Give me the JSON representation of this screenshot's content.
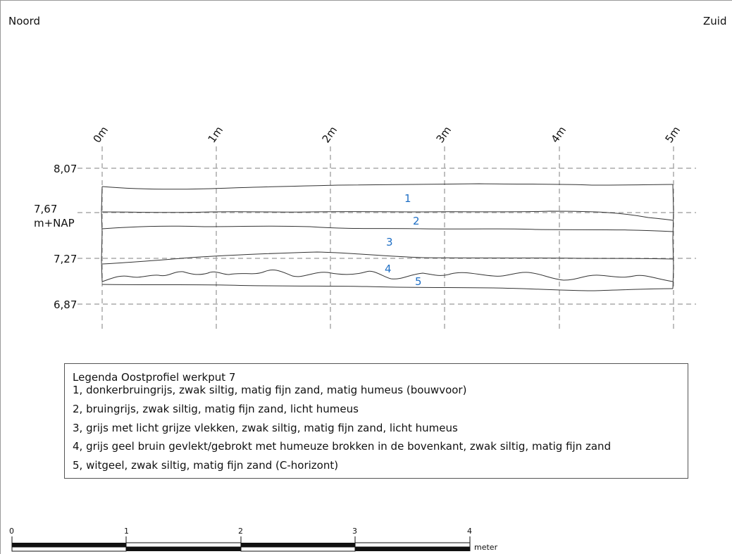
{
  "header": {
    "left": "Noord",
    "right": "Zuid"
  },
  "distance_ticks": [
    "0m",
    "1m",
    "2m",
    "3m",
    "4m",
    "5m"
  ],
  "elevation_ticks": [
    "8,07",
    "7,67",
    "7,27",
    "6,87"
  ],
  "elevation_unit": "m+NAP",
  "layers": [
    {
      "number": "1",
      "description": "1, donkerbruingrijs, zwak siltig, matig fijn zand, matig humeus (bouwvoor)"
    },
    {
      "number": "2",
      "description": "2, bruingrijs, zwak siltig, matig fijn zand, licht humeus"
    },
    {
      "number": "3",
      "description": "3, grijs met licht grijze vlekken,  zwak siltig, matig fijn zand, licht humeus"
    },
    {
      "number": "4",
      "description": "4, grijs geel bruin gevlekt/gebrokt met humeuze brokken in de bovenkant,  zwak siltig, matig fijn zand"
    },
    {
      "number": "5",
      "description": "5, witgeel, zwak siltig, matig fijn zand (C-horizont)"
    }
  ],
  "legend_title": "Legenda Oostprofiel werkput 7",
  "scale_bar": {
    "labels": [
      "0",
      "1",
      "2",
      "3",
      "4"
    ],
    "unit": "meter"
  },
  "colors": {
    "layer_number": "#1f6fc5",
    "grid": "#aaaaaa",
    "line": "#333333"
  }
}
